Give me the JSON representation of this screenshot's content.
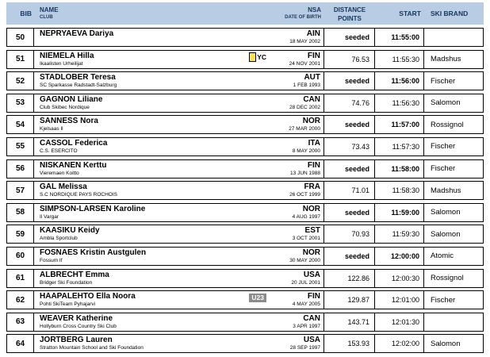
{
  "colors": {
    "header_bg": "#b8cce4",
    "header_text": "#17375d",
    "yc_fill": "#ffe14d",
    "u23_bg": "#8c8c8c"
  },
  "table": {
    "header": {
      "bib": "BIB",
      "name": "NAME",
      "club": "CLUB",
      "nsa": "NSA",
      "date_of_birth": "DATE OF BIRTH",
      "distance_line1": "DISTANCE",
      "distance_line2": "POINTS",
      "start": "START",
      "ski_brand": "SKI BRAND"
    },
    "rows": [
      {
        "bib": "50",
        "name": "NEPRYAEVA Dariya",
        "club": "",
        "badge": "",
        "nsa": "AIN",
        "dob": "18 MAY 2002",
        "points": "seeded",
        "start": "11:55:00",
        "brand": "",
        "seeded": true
      },
      {
        "bib": "51",
        "name": "NIEMELA Hilla",
        "club": "Ikaalisten Urheilijat",
        "badge": "YC",
        "nsa": "FIN",
        "dob": "24 NOV 2001",
        "points": "76.53",
        "start": "11:55:30",
        "brand": "Madshus",
        "seeded": false
      },
      {
        "bib": "52",
        "name": "STADLOBER Teresa",
        "club": "SC Sparkasse Radstadt-Salzburg",
        "badge": "",
        "nsa": "AUT",
        "dob": "1 FEB 1993",
        "points": "seeded",
        "start": "11:56:00",
        "brand": "Fischer",
        "seeded": true
      },
      {
        "bib": "53",
        "name": "GAGNON Liliane",
        "club": "Club Skibec Nordique",
        "badge": "",
        "nsa": "CAN",
        "dob": "28 DEC 2002",
        "points": "74.76",
        "start": "11:56:30",
        "brand": "Salomon",
        "seeded": false
      },
      {
        "bib": "54",
        "name": "SANNESS Nora",
        "club": "Kjelsaas Il",
        "badge": "",
        "nsa": "NOR",
        "dob": "27 MAR 2000",
        "points": "seeded",
        "start": "11:57:00",
        "brand": "Rossignol",
        "seeded": true
      },
      {
        "bib": "55",
        "name": "CASSOL Federica",
        "club": "C.S. ESERCITO",
        "badge": "",
        "nsa": "ITA",
        "dob": "8 MAY 2000",
        "points": "73.43",
        "start": "11:57:30",
        "brand": "Fischer",
        "seeded": false
      },
      {
        "bib": "56",
        "name": "NISKANEN Kerttu",
        "club": "Vieremaen Koitto",
        "badge": "",
        "nsa": "FIN",
        "dob": "13 JUN 1988",
        "points": "seeded",
        "start": "11:58:00",
        "brand": "Fischer",
        "seeded": true
      },
      {
        "bib": "57",
        "name": "GAL Melissa",
        "club": "S.C NORDIQUE PAYS ROCHOIS",
        "badge": "",
        "nsa": "FRA",
        "dob": "26 OCT 1999",
        "points": "71.01",
        "start": "11:58:30",
        "brand": "Madshus",
        "seeded": false
      },
      {
        "bib": "58",
        "name": "SIMPSON-LARSEN Karoline",
        "club": "Il Vargar",
        "badge": "",
        "nsa": "NOR",
        "dob": "4 AUG 1997",
        "points": "seeded",
        "start": "11:59:00",
        "brand": "Salomon",
        "seeded": true
      },
      {
        "bib": "59",
        "name": "KAASIKU Keidy",
        "club": "Ambla Sportclub",
        "badge": "",
        "nsa": "EST",
        "dob": "3 OCT 2001",
        "points": "70.93",
        "start": "11:59:30",
        "brand": "Salomon",
        "seeded": false
      },
      {
        "bib": "60",
        "name": "FOSNAES Kristin Austgulen",
        "club": "Fossum If",
        "badge": "",
        "nsa": "NOR",
        "dob": "30 MAY 2000",
        "points": "seeded",
        "start": "12:00:00",
        "brand": "Atomic",
        "seeded": true
      },
      {
        "bib": "61",
        "name": "ALBRECHT Emma",
        "club": "Bridger Ski Foundation",
        "badge": "",
        "nsa": "USA",
        "dob": "20 JUL 2001",
        "points": "122.86",
        "start": "12:00:30",
        "brand": "Rossignol",
        "seeded": false
      },
      {
        "bib": "62",
        "name": "HAAPALEHTO Ella Noora",
        "club": "Pohti SkiTeam Pyhajarvi",
        "badge": "U23",
        "nsa": "FIN",
        "dob": "4 MAY 2005",
        "points": "129.87",
        "start": "12:01:00",
        "brand": "Fischer",
        "seeded": false
      },
      {
        "bib": "63",
        "name": "WEAVER Katherine",
        "club": "Hollyburn Cross Country Ski Club",
        "badge": "",
        "nsa": "CAN",
        "dob": "3 APR 1997",
        "points": "143.71",
        "start": "12:01:30",
        "brand": "",
        "seeded": false
      },
      {
        "bib": "64",
        "name": "JORTBERG Lauren",
        "club": "Stratton Mountain School and Ski Foundation",
        "badge": "",
        "nsa": "USA",
        "dob": "28 SEP 1997",
        "points": "153.93",
        "start": "12:02:00",
        "brand": "Salomon",
        "seeded": false
      }
    ]
  }
}
